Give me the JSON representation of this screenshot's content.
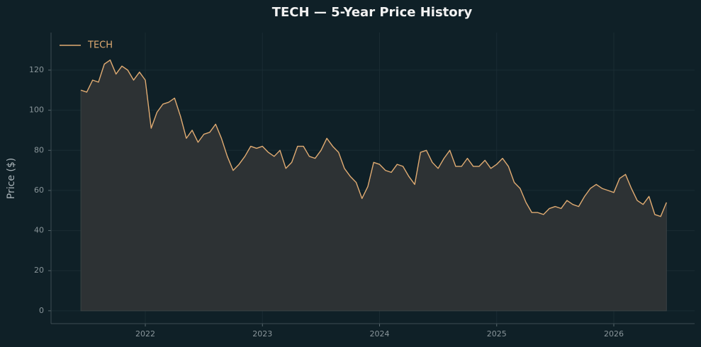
{
  "chart_data": {
    "type": "area-line",
    "title": "TECH — 5-Year Price History",
    "y_label": "Price ($)",
    "x": [
      2021.45,
      2021.5,
      2021.55,
      2021.6,
      2021.65,
      2021.7,
      2021.75,
      2021.8,
      2021.85,
      2021.9,
      2021.95,
      2022.0,
      2022.05,
      2022.1,
      2022.15,
      2022.2,
      2022.25,
      2022.3,
      2022.35,
      2022.4,
      2022.45,
      2022.5,
      2022.55,
      2022.6,
      2022.65,
      2022.7,
      2022.75,
      2022.8,
      2022.85,
      2022.9,
      2022.95,
      2023.0,
      2023.05,
      2023.1,
      2023.15,
      2023.2,
      2023.25,
      2023.3,
      2023.35,
      2023.4,
      2023.45,
      2023.5,
      2023.55,
      2023.6,
      2023.65,
      2023.7,
      2023.75,
      2023.8,
      2023.85,
      2023.9,
      2023.95,
      2024.0,
      2024.05,
      2024.1,
      2024.15,
      2024.2,
      2024.25,
      2024.3,
      2024.35,
      2024.4,
      2024.45,
      2024.5,
      2024.55,
      2024.6,
      2024.65,
      2024.7,
      2024.75,
      2024.8,
      2024.85,
      2024.9,
      2024.95,
      2025.0,
      2025.05,
      2025.1,
      2025.15,
      2025.2,
      2025.25,
      2025.3,
      2025.35,
      2025.4,
      2025.45,
      2025.5,
      2025.55,
      2025.6,
      2025.65,
      2025.7,
      2025.75,
      2025.8,
      2025.85,
      2025.9,
      2025.95,
      2026.0,
      2026.05,
      2026.1,
      2026.15,
      2026.2,
      2026.25,
      2026.3,
      2026.35,
      2026.4,
      2026.45
    ],
    "series": [
      {
        "name": "TECH",
        "color": "#e0ab72",
        "fill": "#2d3234",
        "values": [
          110,
          109,
          115,
          114,
          123,
          125,
          118,
          122,
          120,
          115,
          119,
          115,
          91,
          99,
          103,
          104,
          106,
          97,
          86,
          90,
          84,
          88,
          89,
          93,
          86,
          77,
          70,
          73,
          77,
          82,
          81,
          82,
          79,
          77,
          80,
          71,
          74,
          82,
          82,
          77,
          76,
          80,
          86,
          82,
          79,
          71,
          67,
          64,
          56,
          62,
          74,
          73,
          70,
          69,
          73,
          72,
          67,
          63,
          79,
          80,
          74,
          71,
          76,
          80,
          72,
          72,
          76,
          72,
          72,
          75,
          71,
          73,
          76,
          72,
          64,
          61,
          54,
          49,
          49,
          48,
          51,
          52,
          51,
          55,
          53,
          52,
          57,
          61,
          63,
          61,
          60,
          59,
          66,
          68,
          61,
          55,
          53,
          57,
          48,
          47,
          54
        ]
      }
    ],
    "xlim": [
      2021.195,
      2026.69
    ],
    "ylim": [
      -6.4,
      138.7
    ],
    "xticks": [
      2022,
      2023,
      2024,
      2025,
      2026
    ],
    "yticks": [
      0,
      20,
      40,
      60,
      80,
      100,
      120
    ],
    "grid": true,
    "legend": "upper-left"
  }
}
